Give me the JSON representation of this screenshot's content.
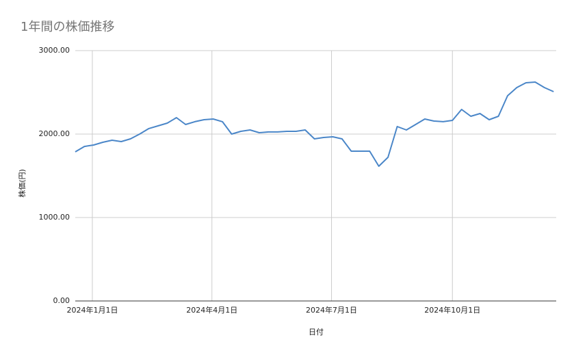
{
  "chart_data": {
    "type": "line",
    "title": "1年間の株価推移",
    "x_label": "日付",
    "y_label": "株価(円)",
    "x": [
      "2023-12-19",
      "2023-12-26",
      "2024-01-02",
      "2024-01-09",
      "2024-01-16",
      "2024-01-23",
      "2024-01-30",
      "2024-02-06",
      "2024-02-13",
      "2024-02-20",
      "2024-02-27",
      "2024-03-05",
      "2024-03-12",
      "2024-03-19",
      "2024-03-26",
      "2024-04-02",
      "2024-04-09",
      "2024-04-16",
      "2024-04-23",
      "2024-04-30",
      "2024-05-07",
      "2024-05-14",
      "2024-05-21",
      "2024-05-28",
      "2024-06-04",
      "2024-06-11",
      "2024-06-18",
      "2024-06-25",
      "2024-07-02",
      "2024-07-09",
      "2024-07-16",
      "2024-07-23",
      "2024-07-30",
      "2024-08-06",
      "2024-08-13",
      "2024-08-20",
      "2024-08-27",
      "2024-09-03",
      "2024-09-10",
      "2024-09-17",
      "2024-09-24",
      "2024-10-01",
      "2024-10-08",
      "2024-10-15",
      "2024-10-22",
      "2024-10-29",
      "2024-11-05",
      "2024-11-12",
      "2024-11-19",
      "2024-11-26",
      "2024-12-03",
      "2024-12-10",
      "2024-12-17"
    ],
    "series": [
      {
        "name": "株価",
        "color": "#4a86c8",
        "values": [
          1787,
          1852,
          1869,
          1902,
          1926,
          1910,
          1943,
          2000,
          2066,
          2098,
          2131,
          2197,
          2115,
          2148,
          2172,
          2180,
          2148,
          2000,
          2033,
          2049,
          2016,
          2025,
          2025,
          2033,
          2033,
          2049,
          1943,
          1959,
          1967,
          1943,
          1795,
          1795,
          1795,
          1615,
          1721,
          2090,
          2049,
          2115,
          2180,
          2156,
          2148,
          2164,
          2295,
          2213,
          2246,
          2172,
          2213,
          2459,
          2557,
          2615,
          2623,
          2557,
          2508
        ]
      }
    ],
    "xlim": [
      "2023-12-19",
      "2024-12-19"
    ],
    "xticks": [
      {
        "value": "2024-01-01",
        "label": "2024年1月1日"
      },
      {
        "value": "2024-04-01",
        "label": "2024年4月1日"
      },
      {
        "value": "2024-07-01",
        "label": "2024年7月1日"
      },
      {
        "value": "2024-10-01",
        "label": "2024年10月1日"
      }
    ],
    "ylim": [
      0,
      3000
    ],
    "yticks": [
      {
        "value": 0,
        "label": "0.00"
      },
      {
        "value": 1000,
        "label": "1000.00"
      },
      {
        "value": 2000,
        "label": "2000.00"
      },
      {
        "value": 3000,
        "label": "3000.00"
      }
    ],
    "grid": true
  }
}
